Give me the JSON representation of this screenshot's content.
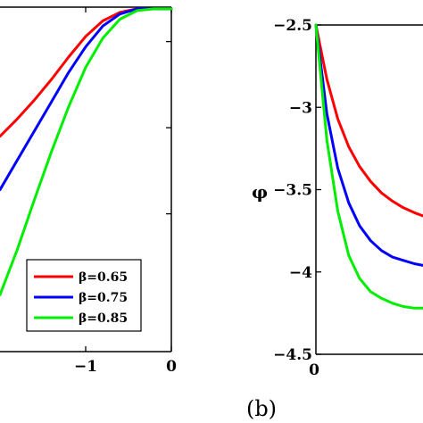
{
  "chart_data": [
    {
      "type": "line",
      "panel": "left",
      "xlabel": "",
      "ylabel": "",
      "xlim": [
        -2,
        0
      ],
      "ylim": [
        -3.3,
        -1.3
      ],
      "x_tick_labels": [
        "−1",
        "0"
      ],
      "x_ticks": [
        -1,
        0
      ],
      "y_ticks": [
        -2.5,
        -2.0,
        -1.5
      ],
      "legend_position": "bottom-right",
      "series": [
        {
          "name": "β=0.65",
          "color": "#ff0000",
          "x": [
            -2.0,
            -1.8,
            -1.6,
            -1.4,
            -1.2,
            -1.0,
            -0.8,
            -0.6,
            -0.4,
            -0.2,
            0.0
          ],
          "y": [
            -2.05,
            -1.95,
            -1.84,
            -1.72,
            -1.59,
            -1.47,
            -1.38,
            -1.33,
            -1.31,
            -1.31,
            -1.31
          ]
        },
        {
          "name": "β=0.75",
          "color": "#0000ff",
          "x": [
            -2.0,
            -1.8,
            -1.6,
            -1.4,
            -1.2,
            -1.0,
            -0.8,
            -0.6,
            -0.4,
            -0.2,
            0.0
          ],
          "y": [
            -2.36,
            -2.19,
            -2.02,
            -1.85,
            -1.68,
            -1.53,
            -1.41,
            -1.34,
            -1.31,
            -1.31,
            -1.31
          ]
        },
        {
          "name": "β=0.85",
          "color": "#00ee00",
          "x": [
            -2.0,
            -1.8,
            -1.6,
            -1.4,
            -1.2,
            -1.0,
            -0.8,
            -0.6,
            -0.4,
            -0.2,
            0.0
          ],
          "y": [
            -2.97,
            -2.71,
            -2.42,
            -2.14,
            -1.88,
            -1.65,
            -1.48,
            -1.37,
            -1.32,
            -1.31,
            -1.31
          ]
        }
      ]
    },
    {
      "type": "line",
      "panel": "right",
      "xlabel": "",
      "ylabel": "φ",
      "xlim": [
        0,
        1
      ],
      "ylim": [
        -4.5,
        -2.5
      ],
      "x_tick_labels": [
        "0"
      ],
      "x_ticks": [
        0
      ],
      "y_tick_labels": [
        "−2.5",
        "−3",
        "−3.5",
        "−4",
        "−4.5"
      ],
      "y_ticks": [
        -2.5,
        -3.0,
        -3.5,
        -4.0,
        -4.5
      ],
      "series": [
        {
          "name": "β=0.65",
          "color": "#ff0000",
          "x": [
            0.0,
            0.025,
            0.05,
            0.075,
            0.1,
            0.125,
            0.15,
            0.175,
            0.2,
            0.225,
            0.245
          ],
          "y": [
            -2.5,
            -2.83,
            -3.07,
            -3.24,
            -3.36,
            -3.45,
            -3.52,
            -3.57,
            -3.61,
            -3.64,
            -3.66
          ]
        },
        {
          "name": "β=0.75",
          "color": "#0000ff",
          "x": [
            0.0,
            0.025,
            0.05,
            0.075,
            0.1,
            0.125,
            0.15,
            0.175,
            0.2,
            0.225,
            0.245
          ],
          "y": [
            -2.5,
            -3.04,
            -3.37,
            -3.58,
            -3.72,
            -3.81,
            -3.87,
            -3.91,
            -3.93,
            -3.95,
            -3.96
          ]
        },
        {
          "name": "β=0.85",
          "color": "#00ee00",
          "x": [
            0.0,
            0.025,
            0.05,
            0.075,
            0.1,
            0.125,
            0.15,
            0.175,
            0.2,
            0.225,
            0.245
          ],
          "y": [
            -2.5,
            -3.2,
            -3.63,
            -3.9,
            -4.04,
            -4.12,
            -4.16,
            -4.19,
            -4.21,
            -4.22,
            -4.22
          ]
        }
      ]
    }
  ],
  "legend": {
    "items": [
      {
        "label": "β=0.65",
        "color": "#ff0000"
      },
      {
        "label": "β=0.75",
        "color": "#0000ff"
      },
      {
        "label": "β=0.85",
        "color": "#00ee00"
      }
    ]
  },
  "panel_label": "(b)"
}
